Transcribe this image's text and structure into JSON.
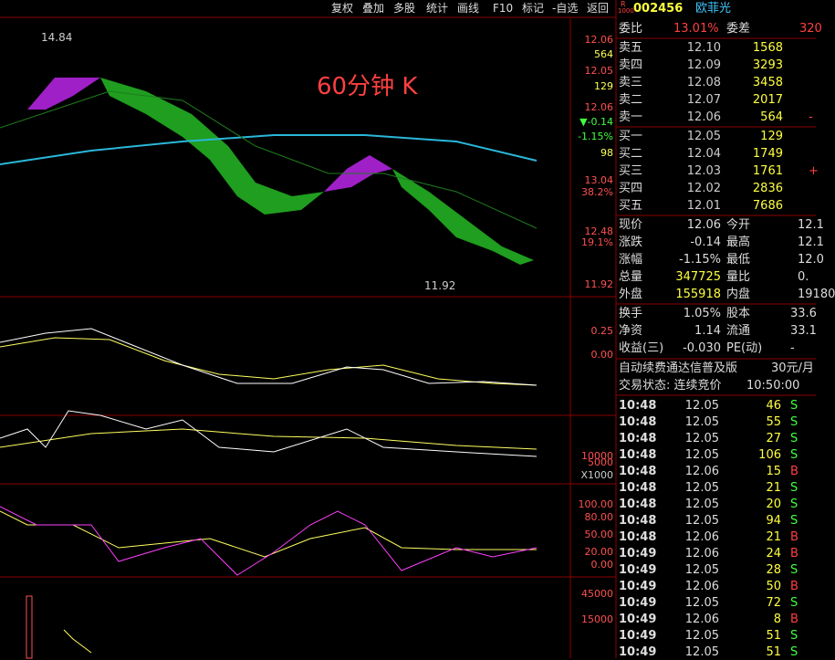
{
  "toolbar": [
    "复权",
    "叠加",
    "多股",
    "统计",
    "画线",
    "F10",
    "标记",
    "-自选",
    "返回"
  ],
  "chart": {
    "title": "60分钟 K",
    "high_label": "14.84",
    "low_label": "11.92",
    "main_axis": [
      "12.06",
      "564",
      "12.05",
      "129",
      "12.06",
      "▼-0.14",
      "-1.15%",
      "98",
      "13.04",
      "38.2%",
      "12.48",
      "19.1%",
      "11.92"
    ],
    "macd_axis": [
      "0.25",
      "0.00"
    ],
    "vol_axis": [
      "10000",
      "5000",
      "X1000"
    ],
    "kdj_axis": [
      "100.00",
      "80.00",
      "50.00",
      "20.00",
      "0.00"
    ],
    "bottom_axis": [
      "45000",
      "15000"
    ]
  },
  "quote": {
    "badge": "R",
    "badge_sub": "1000",
    "code": "002456",
    "name": "欧菲光",
    "weibi": [
      "委比",
      "13.01%",
      "委差",
      "320"
    ],
    "book": [
      [
        "卖五",
        "12.10",
        "1568",
        ""
      ],
      [
        "卖四",
        "12.09",
        "3293",
        ""
      ],
      [
        "卖三",
        "12.08",
        "3458",
        ""
      ],
      [
        "卖二",
        "12.07",
        "2017",
        ""
      ],
      [
        "卖一",
        "12.06",
        "564",
        "-"
      ],
      [
        "买一",
        "12.05",
        "129",
        ""
      ],
      [
        "买二",
        "12.04",
        "1749",
        ""
      ],
      [
        "买三",
        "12.03",
        "1761",
        "+"
      ],
      [
        "买四",
        "12.02",
        "2836",
        ""
      ],
      [
        "买五",
        "12.01",
        "7686",
        ""
      ]
    ],
    "stats": [
      [
        "现价",
        "12.06",
        "今开",
        "12.1"
      ],
      [
        "涨跌",
        "-0.14",
        "最高",
        "12.1"
      ],
      [
        "涨幅",
        "-1.15%",
        "最低",
        "12.0"
      ],
      [
        "总量",
        "347725",
        "量比",
        "0."
      ],
      [
        "外盘",
        "155918",
        "内盘",
        "19180"
      ]
    ],
    "fund": [
      [
        "换手",
        "1.05%",
        "股本",
        "33.6"
      ],
      [
        "净资",
        "1.14",
        "流通",
        "33.1"
      ],
      [
        "收益(三)",
        "-0.030",
        "PE(动)",
        "-"
      ]
    ],
    "promo": [
      "自动续费通达信普及版",
      "30元/月"
    ],
    "status": [
      "交易状态: 连续竞价",
      "10:50:00"
    ]
  },
  "trades": [
    [
      "10:48",
      "12.05",
      "46",
      "S"
    ],
    [
      "10:48",
      "12.05",
      "55",
      "S"
    ],
    [
      "10:48",
      "12.05",
      "27",
      "S"
    ],
    [
      "10:48",
      "12.05",
      "106",
      "S"
    ],
    [
      "10:48",
      "12.06",
      "15",
      "B"
    ],
    [
      "10:48",
      "12.05",
      "21",
      "S"
    ],
    [
      "10:48",
      "12.05",
      "20",
      "S"
    ],
    [
      "10:48",
      "12.05",
      "94",
      "S"
    ],
    [
      "10:48",
      "12.06",
      "21",
      "B"
    ],
    [
      "10:49",
      "12.06",
      "24",
      "B"
    ],
    [
      "10:49",
      "12.05",
      "28",
      "S"
    ],
    [
      "10:49",
      "12.06",
      "50",
      "B"
    ],
    [
      "10:49",
      "12.05",
      "72",
      "S"
    ],
    [
      "10:49",
      "12.06",
      "8",
      "B"
    ],
    [
      "10:49",
      "12.05",
      "51",
      "S"
    ],
    [
      "10:49",
      "12.05",
      "51",
      "S"
    ]
  ]
}
